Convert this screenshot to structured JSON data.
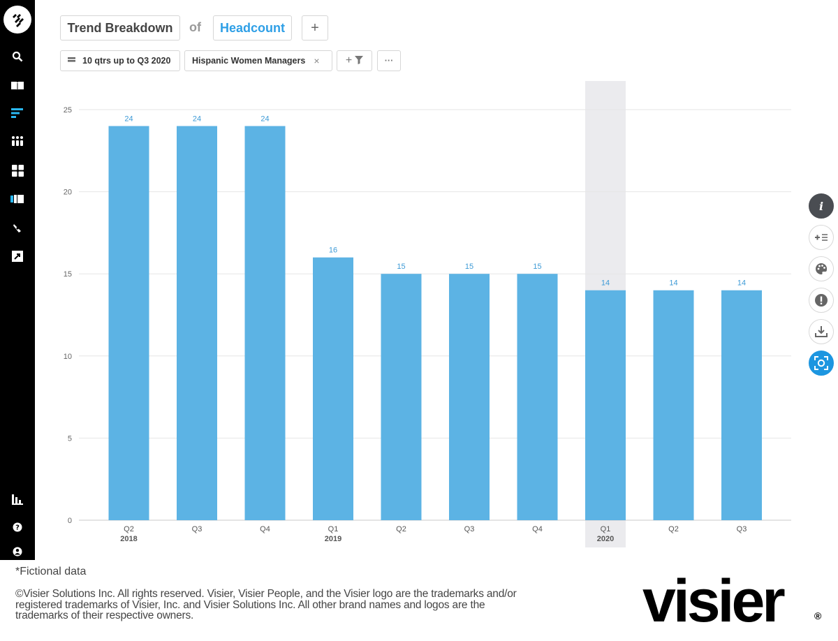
{
  "header": {
    "analysis": "Trend Breakdown",
    "connector": "of",
    "metric": "Headcount",
    "add_label": "+"
  },
  "filters": {
    "period": "10 qtrs up to Q3 2020",
    "population": "Hispanic Women Managers",
    "remove_label": "×",
    "add_filter_label": "+",
    "more_label": "···"
  },
  "sidebar": {
    "icons": [
      "visier-logo-icon",
      "search-icon",
      "book-icon",
      "analysis-icon",
      "grid-dots-icon",
      "dashboard-icon",
      "guidebook-icon",
      "explore-icon",
      "share-icon",
      "chart-icon",
      "help-icon",
      "user-icon"
    ]
  },
  "tools": {
    "info_label": "i",
    "icons": [
      "info-icon",
      "add-compare-icon",
      "palette-icon",
      "alert-icon",
      "download-icon",
      "snapshot-icon"
    ]
  },
  "chart_data": {
    "type": "bar",
    "categories": [
      "Q2",
      "Q3",
      "Q4",
      "Q1",
      "Q2",
      "Q3",
      "Q4",
      "Q1",
      "Q2",
      "Q3"
    ],
    "year_labels": [
      "2018",
      "",
      "",
      "2019",
      "",
      "",
      "",
      "2020",
      "",
      ""
    ],
    "values": [
      24,
      24,
      24,
      16,
      15,
      15,
      15,
      14,
      14,
      14
    ],
    "highlighted_index": 7,
    "ylim": [
      0,
      25
    ],
    "yticks": [
      0,
      5,
      10,
      15,
      20,
      25
    ],
    "grid": true,
    "bar_color": "#5cb3e4",
    "label_color": "#3d9ad6",
    "highlight_color": "#ebebee"
  },
  "footer": {
    "note": "*Fictional data",
    "copyright": "©Visier Solutions Inc. All rights reserved. Visier, Visier People, and the Visier logo are the trademarks and/or registered trademarks of Visier, Inc. and Visier Solutions Inc. All other brand names and logos are the trademarks of their respective owners.",
    "brand": "visier",
    "reg": "®"
  }
}
